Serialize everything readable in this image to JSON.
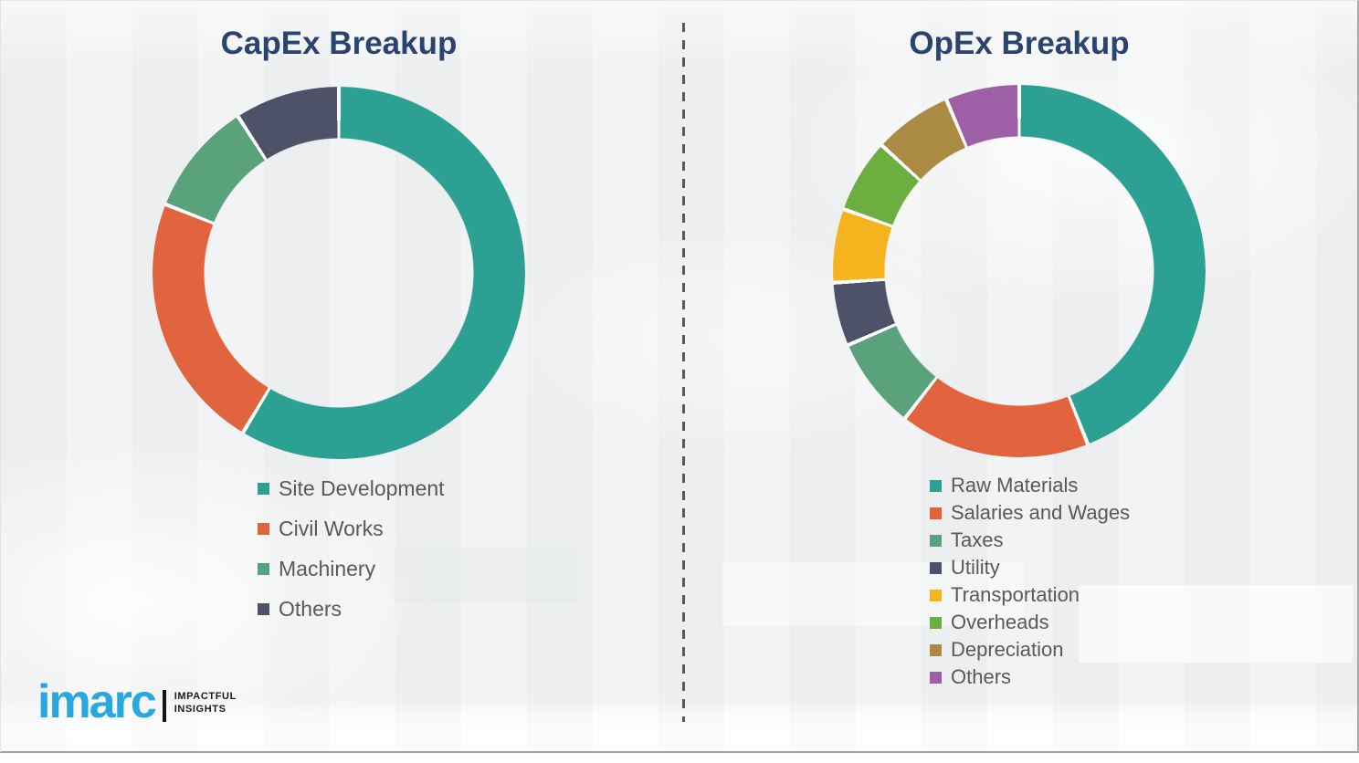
{
  "page": {
    "background_color": "#f0f1f2",
    "divider_color": "#58595b",
    "title_color": "#2a446f",
    "legend_text_color": "#595959",
    "gap_color": "#fcfcfc"
  },
  "logo": {
    "brand": "imarc",
    "brand_color": "#29a8e0",
    "tagline_line1": "IMPACTFUL",
    "tagline_line2": "INSIGHTS"
  },
  "chart_data": [
    {
      "type": "pie",
      "subtype": "donut",
      "title": "CapEx Breakup",
      "labels": [
        "Site Development",
        "Civil Works",
        "Machinery",
        "Others"
      ],
      "values": [
        58.6,
        22.4,
        9.9,
        9.1
      ],
      "unit": "percent-estimated-from-arc-angles",
      "colors": [
        "#2BA093",
        "#E2643F",
        "#5AA27C",
        "#4D5269"
      ],
      "start_angle_deg": 0,
      "direction": "clockwise",
      "legend_position": "below-left",
      "data_labels_shown": false
    },
    {
      "type": "pie",
      "subtype": "donut",
      "title": "OpEx Breakup",
      "labels": [
        "Raw Materials",
        "Salaries and Wages",
        "Taxes",
        "Utility",
        "Transportation",
        "Overheads",
        "Depreciation",
        "Others"
      ],
      "values": [
        44.0,
        16.5,
        8.0,
        5.5,
        6.4,
        6.4,
        6.8,
        6.4
      ],
      "unit": "percent-estimated-from-arc-angles",
      "colors": [
        "#2BA093",
        "#E2643F",
        "#5AA27C",
        "#4D5269",
        "#F5B41E",
        "#6CAE40",
        "#AB8A44",
        "#9D5FA5"
      ],
      "start_angle_deg": 0,
      "direction": "clockwise",
      "legend_position": "below-left",
      "data_labels_shown": false
    }
  ]
}
